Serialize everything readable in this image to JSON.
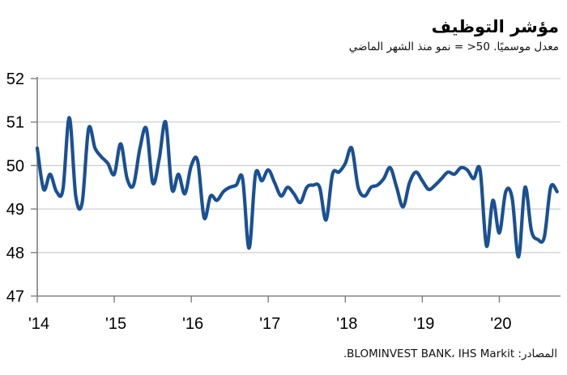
{
  "chart_data": {
    "type": "line",
    "title": "مؤشر التوظيف",
    "subtitle": "معدل موسميًا. ‎>50 = نمو منذ الشهر الماضي",
    "source": "المصادر: BLOMINVEST BANK، IHS Markit.",
    "x_tick_labels": [
      "'14",
      "'15",
      "'16",
      "'17",
      "'18",
      "'19",
      "'20"
    ],
    "x_range": "Jan 2014 - Oct 2020",
    "frequency": "monthly",
    "ylim": [
      47,
      52
    ],
    "yticks": [
      47,
      48,
      49,
      50,
      51,
      52
    ],
    "grid": "horizontal",
    "legend": "none",
    "colors": {
      "line": "#1A5094",
      "axis": "#7F7F7F",
      "grid": "#C9C9C9",
      "text": "#000000"
    },
    "series": [
      {
        "name": "مؤشر التوظيف",
        "start": "2014-01",
        "values": [
          50.4,
          49.45,
          49.8,
          49.4,
          49.45,
          51.1,
          49.3,
          49.15,
          50.85,
          50.4,
          50.2,
          50.05,
          49.8,
          50.5,
          49.7,
          49.55,
          50.4,
          50.85,
          49.6,
          50.15,
          51.0,
          49.45,
          49.8,
          49.35,
          50.0,
          50.1,
          48.8,
          49.3,
          49.2,
          49.4,
          49.5,
          49.55,
          49.7,
          48.1,
          49.8,
          49.65,
          49.9,
          49.6,
          49.3,
          49.5,
          49.35,
          49.15,
          49.5,
          49.55,
          49.5,
          48.75,
          49.8,
          49.85,
          50.05,
          50.4,
          49.5,
          49.3,
          49.5,
          49.55,
          49.7,
          49.95,
          49.5,
          49.05,
          49.6,
          49.85,
          49.65,
          49.45,
          49.55,
          49.7,
          49.85,
          49.8,
          49.95,
          49.9,
          49.7,
          49.9,
          48.15,
          49.2,
          48.45,
          49.4,
          49.25,
          47.9,
          49.5,
          48.5,
          48.3,
          48.35,
          49.5,
          49.4
        ]
      }
    ]
  }
}
